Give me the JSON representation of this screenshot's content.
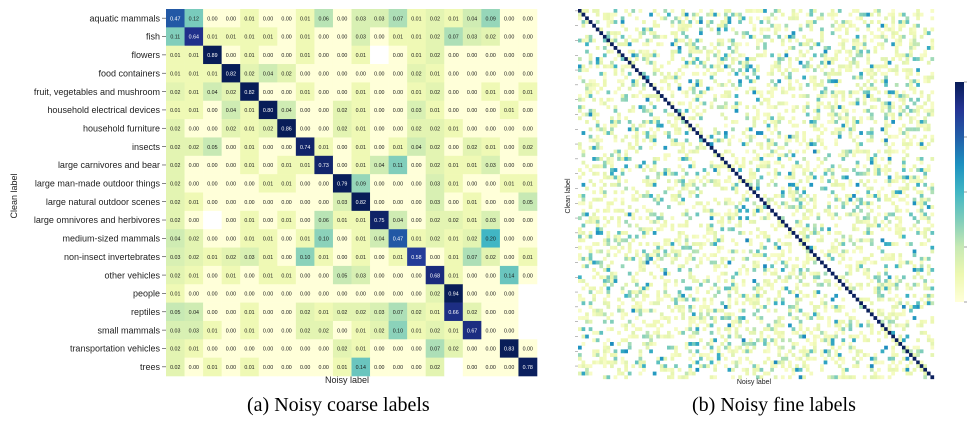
{
  "captions": {
    "a": "(a) Noisy coarse labels",
    "b": "(b) Noisy fine labels"
  },
  "colors": {
    "colormap": [
      "#ffffd9",
      "#edf8b1",
      "#c7e9b4",
      "#7fcdbb",
      "#41b6c4",
      "#1d91c0",
      "#225ea8",
      "#253494",
      "#081d58"
    ],
    "grid_background": "#ffffff"
  },
  "chart_data": [
    {
      "type": "heatmap",
      "title": "",
      "xlabel": "Noisy label",
      "ylabel": "Clean label",
      "colormap": "YlGnBu",
      "categories": [
        "aquatic mammals",
        "fish",
        "flowers",
        "food containers",
        "fruit, vegetables and mushroom",
        "household electrical devices",
        "household furniture",
        "insects",
        "large carnivores and bear",
        "large man-made outdoor things",
        "large natural outdoor scenes",
        "large omnivores and herbivores",
        "medium-sized mammals",
        "non-insect invertebrates",
        "other vehicles",
        "people",
        "reptiles",
        "small mammals",
        "transportation vehicles",
        "trees"
      ],
      "values": [
        [
          "0.47",
          "0.12",
          "0.00",
          "0.00",
          "0.01",
          "0.00",
          "0.00",
          "0.01",
          "0.06",
          "0.00",
          "0.03",
          "0.03",
          "0.07",
          "0.01",
          "0.02",
          "0.01",
          "0.04",
          "0.09",
          "0.00",
          "0.00"
        ],
        [
          "0.11",
          "0.64",
          "0.01",
          "0.01",
          "0.01",
          "0.01",
          "0.00",
          "0.01",
          "0.00",
          "0.00",
          "0.03",
          "0.00",
          "0.01",
          "0.01",
          "0.02",
          "0.07",
          "0.03",
          "0.02",
          "0.00",
          "0.00"
        ],
        [
          "0.01",
          "0.01",
          "0.89",
          "0.00",
          "0.01",
          "0.00",
          "0.00",
          "0.01",
          "0.00",
          "0.00",
          "0.01",
          "",
          "0.00",
          "0.01",
          "0.02",
          "0.00",
          "0.00",
          "0.00",
          "0.00",
          "0.00"
        ],
        [
          "0.01",
          "0.01",
          "0.01",
          "0.82",
          "0.02",
          "0.04",
          "0.02",
          "0.00",
          "0.00",
          "0.00",
          "0.00",
          "0.00",
          "0.00",
          "0.02",
          "0.01",
          "0.00",
          "0.00",
          "0.00",
          "0.00",
          "0.00"
        ],
        [
          "0.02",
          "0.01",
          "0.04",
          "0.02",
          "0.82",
          "0.00",
          "0.00",
          "0.01",
          "0.00",
          "0.00",
          "0.01",
          "0.00",
          "0.00",
          "0.01",
          "0.02",
          "0.00",
          "0.00",
          "0.01",
          "0.00",
          "0.01"
        ],
        [
          "0.01",
          "0.01",
          "0.00",
          "0.04",
          "0.01",
          "0.80",
          "0.04",
          "0.00",
          "0.00",
          "0.02",
          "0.01",
          "0.00",
          "0.00",
          "0.03",
          "0.01",
          "0.00",
          "0.00",
          "0.00",
          "0.01",
          "0.00"
        ],
        [
          "0.02",
          "0.00",
          "0.00",
          "0.02",
          "0.01",
          "0.02",
          "0.86",
          "0.00",
          "0.00",
          "0.02",
          "0.01",
          "0.00",
          "0.00",
          "0.02",
          "0.02",
          "0.01",
          "0.00",
          "0.00",
          "0.00",
          "0.00"
        ],
        [
          "0.02",
          "0.02",
          "0.05",
          "0.00",
          "0.01",
          "0.00",
          "0.00",
          "0.74",
          "0.01",
          "0.00",
          "0.01",
          "0.00",
          "0.01",
          "0.04",
          "0.02",
          "0.00",
          "0.02",
          "0.01",
          "0.00",
          "0.02"
        ],
        [
          "0.02",
          "0.00",
          "0.00",
          "0.00",
          "0.01",
          "0.00",
          "0.01",
          "0.01",
          "0.73",
          "0.00",
          "0.01",
          "0.04",
          "0.11",
          "0.00",
          "0.02",
          "0.01",
          "0.01",
          "0.03",
          "0.00",
          "0.00"
        ],
        [
          "0.02",
          "0.00",
          "0.00",
          "0.00",
          "0.00",
          "0.01",
          "0.01",
          "0.00",
          "0.00",
          "0.79",
          "0.09",
          "0.00",
          "0.00",
          "0.00",
          "0.03",
          "0.01",
          "0.00",
          "0.00",
          "0.01",
          "0.01"
        ],
        [
          "0.02",
          "0.01",
          "0.00",
          "0.00",
          "0.00",
          "0.00",
          "0.00",
          "0.00",
          "0.00",
          "0.03",
          "0.82",
          "0.00",
          "0.00",
          "0.00",
          "0.03",
          "0.00",
          "0.01",
          "0.00",
          "0.00",
          "0.05"
        ],
        [
          "0.02",
          "0.00",
          "",
          "0.00",
          "0.01",
          "0.00",
          "0.01",
          "0.00",
          "0.06",
          "0.01",
          "0.01",
          "0.75",
          "0.04",
          "0.00",
          "0.02",
          "0.02",
          "0.01",
          "0.03",
          "0.00",
          "0.00"
        ],
        [
          "0.04",
          "0.02",
          "0.00",
          "0.00",
          "0.01",
          "0.01",
          "0.00",
          "0.01",
          "0.10",
          "0.00",
          "0.01",
          "0.04",
          "0.47",
          "0.01",
          "0.02",
          "0.01",
          "0.02",
          "0.20",
          "0.00",
          "0.00"
        ],
        [
          "0.03",
          "0.02",
          "0.01",
          "0.02",
          "0.03",
          "0.01",
          "0.00",
          "0.10",
          "0.01",
          "0.00",
          "0.01",
          "0.00",
          "0.01",
          "0.58",
          "0.00",
          "0.01",
          "0.07",
          "0.02",
          "0.00",
          "0.01"
        ],
        [
          "0.02",
          "0.01",
          "0.00",
          "0.01",
          "0.00",
          "0.01",
          "0.01",
          "0.00",
          "0.00",
          "0.05",
          "0.03",
          "0.00",
          "0.00",
          "0.00",
          "0.68",
          "0.01",
          "0.00",
          "0.00",
          "0.14",
          "0.00"
        ],
        [
          "0.01",
          "0.00",
          "0.00",
          "0.00",
          "0.00",
          "0.00",
          "0.00",
          "0.00",
          "0.00",
          "0.00",
          "0.00",
          "0.00",
          "0.00",
          "0.00",
          "0.02",
          "0.94",
          "0.00",
          "0.00",
          "0.00",
          ""
        ],
        [
          "0.05",
          "0.04",
          "0.00",
          "0.00",
          "0.01",
          "0.00",
          "0.00",
          "0.02",
          "0.01",
          "0.02",
          "0.02",
          "0.03",
          "0.07",
          "0.02",
          "0.01",
          "0.66",
          "0.02",
          "0.00",
          "0.00",
          ""
        ],
        [
          "0.03",
          "0.03",
          "0.01",
          "0.00",
          "0.01",
          "0.00",
          "0.00",
          "0.02",
          "0.02",
          "0.00",
          "0.01",
          "0.02",
          "0.10",
          "0.01",
          "0.02",
          "0.01",
          "0.67",
          "0.00",
          "0.00",
          ""
        ],
        [
          "0.02",
          "0.01",
          "0.00",
          "0.00",
          "0.00",
          "0.00",
          "0.00",
          "0.00",
          "0.00",
          "0.02",
          "0.01",
          "0.00",
          "0.00",
          "0.00",
          "0.07",
          "0.02",
          "0.00",
          "0.00",
          "0.83",
          "0.00"
        ],
        [
          "0.02",
          "0.00",
          "0.01",
          "0.00",
          "0.01",
          "0.00",
          "0.00",
          "0.00",
          "0.00",
          "0.01",
          "0.14",
          "0.00",
          "0.00",
          "0.00",
          "0.02",
          "",
          "0.00",
          "0.00",
          "0.00",
          "0.78"
        ]
      ]
    },
    {
      "type": "heatmap",
      "title": "",
      "xlabel": "Noisy label",
      "ylabel": "Clean label",
      "colormap": "YlGnBu",
      "grid_size": 100,
      "diagonal_value": 0.9,
      "off_diagonal": "sparse small values (about 0.00–0.10)"
    }
  ]
}
